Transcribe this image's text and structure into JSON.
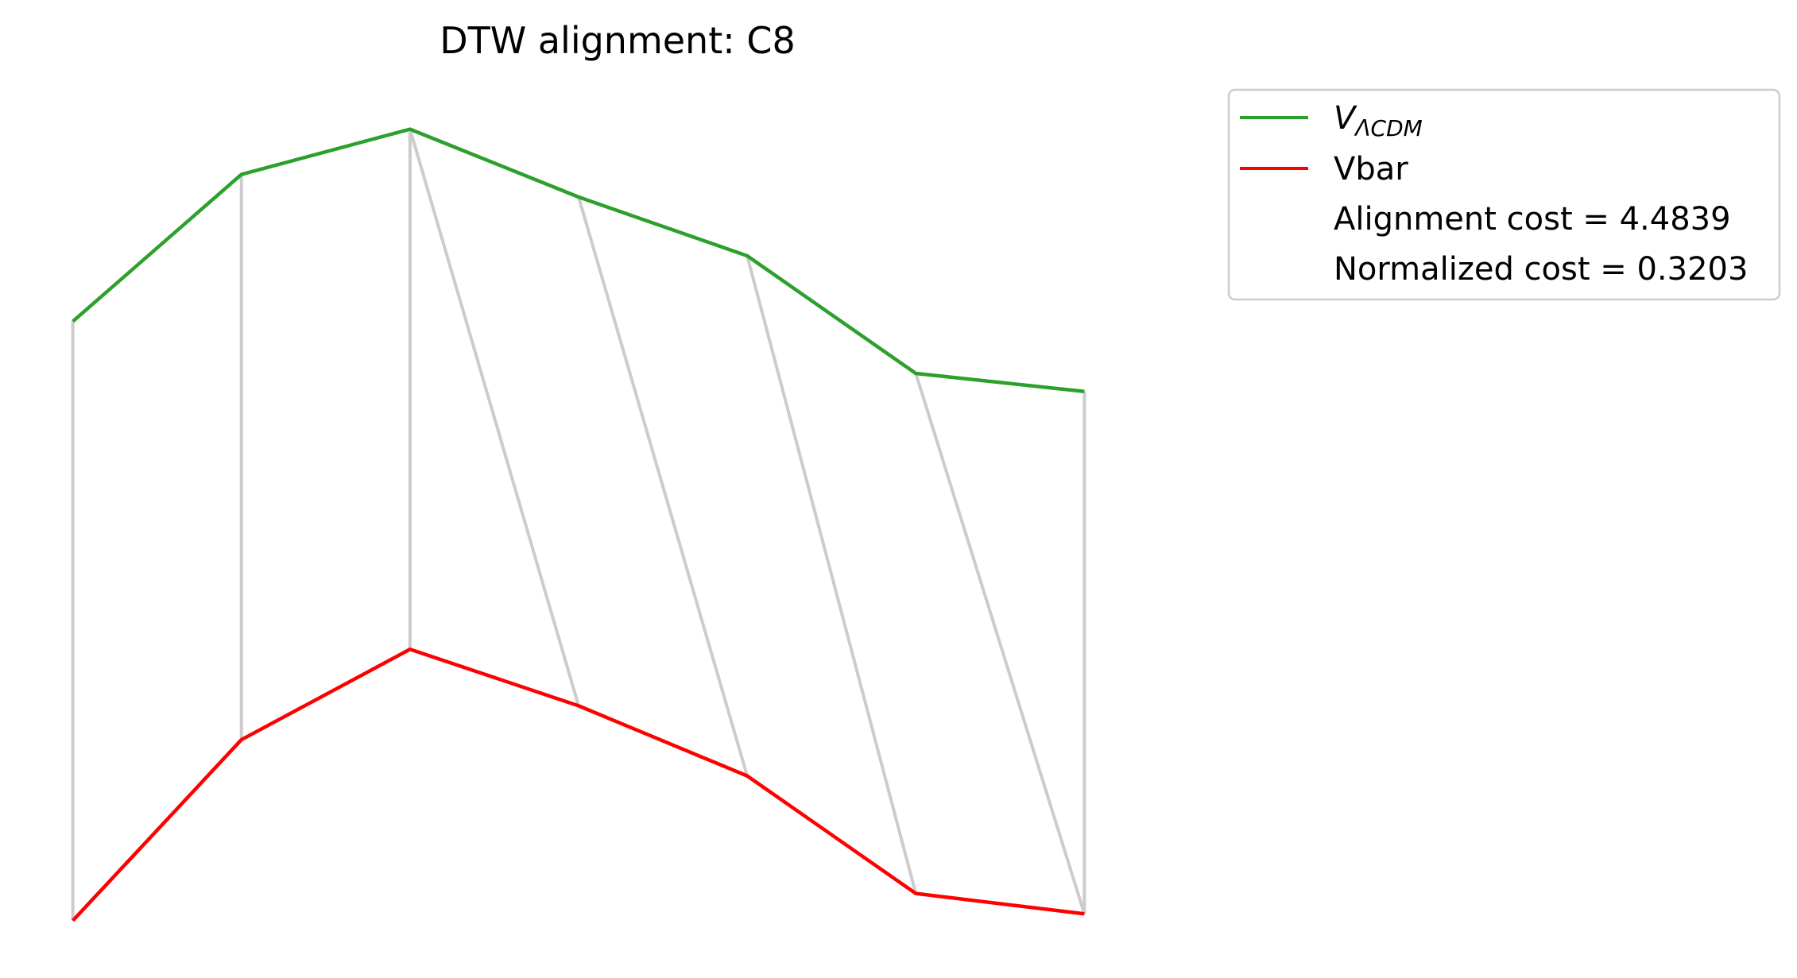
{
  "chart_data": {
    "type": "line",
    "title": "DTW alignment: C8",
    "x": [
      0,
      1,
      2,
      3,
      4,
      5,
      6
    ],
    "series": [
      {
        "name": "V",
        "name_subscript": "ΛCDM",
        "color": "#2ca02c",
        "values": [
          0.515,
          0.84,
          0.94,
          0.79,
          0.66,
          0.4,
          0.36
        ]
      },
      {
        "name": "Vbar",
        "color": "#ff0000",
        "values": [
          -0.81,
          -0.41,
          -0.21,
          -0.335,
          -0.49,
          -0.75,
          -0.795
        ]
      }
    ],
    "alignment": [
      [
        0,
        0
      ],
      [
        1,
        1
      ],
      [
        2,
        2
      ],
      [
        2,
        3
      ],
      [
        3,
        4
      ],
      [
        4,
        5
      ],
      [
        5,
        6
      ],
      [
        6,
        6
      ]
    ],
    "alignment_color": "#cccccc",
    "annotations": [
      "Alignment cost = 4.4839",
      "Normalized cost = 0.3203"
    ],
    "legend_placement": "outside-top-right",
    "axes_visible": false,
    "grid": false,
    "xlim": [
      -0.3,
      6.3
    ],
    "ylim": [
      -0.9,
      1.05
    ]
  }
}
